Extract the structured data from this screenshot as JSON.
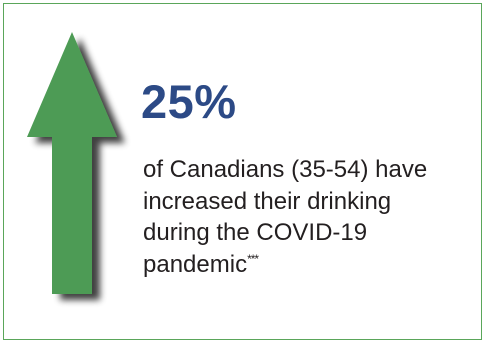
{
  "infographic": {
    "statistic": "25%",
    "description_lines": [
      "of Canadians (35-54) have",
      "increased their drinking",
      "during the COVID-19",
      "pandemic"
    ],
    "footnote_marker": "***",
    "arrow_icon": "up-arrow-icon",
    "colors": {
      "border": "#5aa65a",
      "arrow_fill": "#4e9b55",
      "statistic": "#2c4a86",
      "text": "#231f20"
    }
  }
}
